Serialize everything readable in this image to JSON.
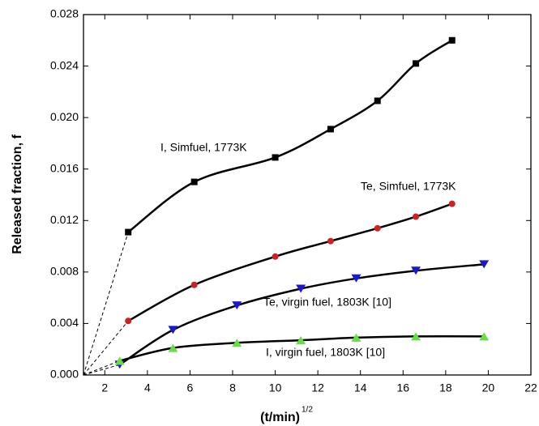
{
  "chart_data": {
    "type": "scatter",
    "x_label": "(t/min)",
    "x_label_sup": "1/2",
    "y_label": "Released fraction, f",
    "xlim": [
      1,
      22
    ],
    "xticks": [
      2,
      4,
      6,
      8,
      10,
      12,
      14,
      16,
      18,
      20,
      22
    ],
    "ylim": [
      0,
      0.028
    ],
    "yticks": [
      {
        "value": 0,
        "label": "0.000"
      },
      {
        "value": 0.004,
        "label": "0.004"
      },
      {
        "value": 0.008,
        "label": "0.008"
      },
      {
        "value": 0.012,
        "label": "0.012"
      },
      {
        "value": 0.016,
        "label": "0.016"
      },
      {
        "value": 0.02,
        "label": "0.020"
      },
      {
        "value": 0.024,
        "label": "0.024"
      },
      {
        "value": 0.028,
        "label": "0.028"
      }
    ],
    "series": [
      {
        "name": "I, Simfuel, 1773K",
        "color": "#000000",
        "marker": "square",
        "x": [
          3.1,
          6.2,
          10.0,
          12.6,
          14.8,
          16.6,
          18.3
        ],
        "values": [
          0.0111,
          0.015,
          0.0169,
          0.0191,
          0.0213,
          0.0242,
          0.026
        ]
      },
      {
        "name": "Te, Simfuel, 1773K",
        "color": "#cc2222",
        "marker": "circle",
        "x": [
          3.1,
          6.2,
          10.0,
          12.6,
          14.8,
          16.6,
          18.3
        ],
        "values": [
          0.0042,
          0.007,
          0.0092,
          0.0104,
          0.0114,
          0.0123,
          0.0133
        ]
      },
      {
        "name": "Te, virgin fuel, 1803K [10]",
        "color": "#1a1acc",
        "marker": "triangle-down",
        "x": [
          2.7,
          5.2,
          8.2,
          11.2,
          13.8,
          16.6,
          19.8
        ],
        "values": [
          0.0008,
          0.0035,
          0.0054,
          0.0067,
          0.0075,
          0.0081,
          0.0086
        ]
      },
      {
        "name": "I, virgin fuel, 1803K [10]",
        "color": "#66dd44",
        "marker": "triangle-up",
        "x": [
          2.7,
          5.2,
          8.2,
          11.2,
          13.8,
          16.6,
          19.8
        ],
        "values": [
          0.0011,
          0.0021,
          0.0025,
          0.0027,
          0.0029,
          0.003,
          0.003
        ]
      }
    ]
  }
}
